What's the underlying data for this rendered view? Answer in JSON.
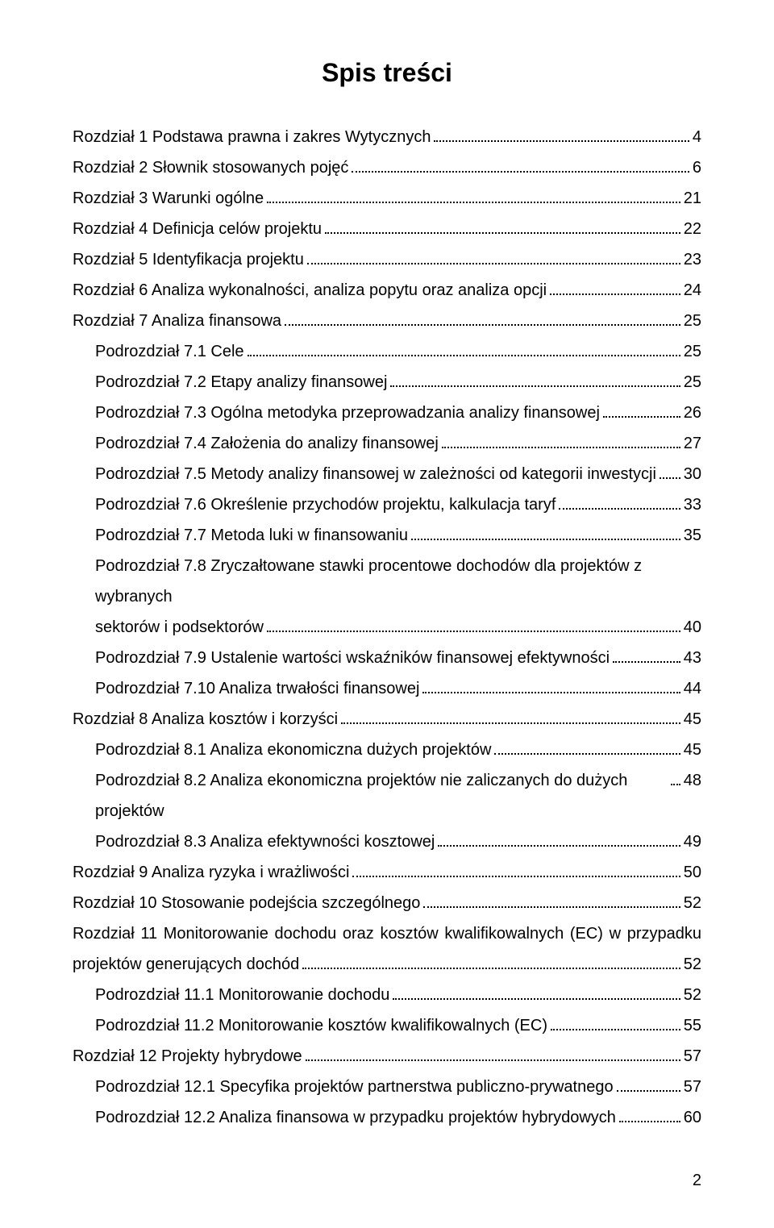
{
  "title": "Spis treści",
  "page_number": "2",
  "toc": [
    {
      "label": "Rozdział 1 Podstawa prawna i zakres Wytycznych",
      "page": "4",
      "indent": 0,
      "justify": false
    },
    {
      "label": "Rozdział 2 Słownik stosowanych pojęć",
      "page": "6",
      "indent": 0,
      "justify": false
    },
    {
      "label": "Rozdział 3 Warunki ogólne",
      "page": "21",
      "indent": 0,
      "justify": false
    },
    {
      "label": "Rozdział 4 Definicja celów projektu",
      "page": "22",
      "indent": 0,
      "justify": false
    },
    {
      "label": "Rozdział 5 Identyfikacja projektu",
      "page": "23",
      "indent": 0,
      "justify": false
    },
    {
      "label": "Rozdział 6 Analiza wykonalności, analiza popytu oraz analiza opcji",
      "page": "24",
      "indent": 0,
      "justify": false
    },
    {
      "label": "Rozdział 7 Analiza finansowa",
      "page": "25",
      "indent": 0,
      "justify": false
    },
    {
      "label": "Podrozdział 7.1 Cele",
      "page": "25",
      "indent": 1,
      "justify": false
    },
    {
      "label": "Podrozdział 7.2 Etapy analizy finansowej",
      "page": "25",
      "indent": 1,
      "justify": false
    },
    {
      "label": "Podrozdział 7.3 Ogólna metodyka przeprowadzania analizy finansowej",
      "page": "26",
      "indent": 1,
      "justify": false
    },
    {
      "label": "Podrozdział 7.4 Założenia do analizy finansowej",
      "page": "27",
      "indent": 1,
      "justify": false
    },
    {
      "label": "Podrozdział 7.5 Metody analizy finansowej  w zależności od kategorii inwestycji",
      "page": "30",
      "indent": 1,
      "justify": false
    },
    {
      "label": "Podrozdział 7.6 Określenie przychodów projektu, kalkulacja taryf",
      "page": "33",
      "indent": 1,
      "justify": false
    },
    {
      "label": "Podrozdział 7.7 Metoda luki w finansowaniu",
      "page": "35",
      "indent": 1,
      "justify": false
    },
    {
      "label_lines": [
        "Podrozdział 7.8 Zryczałtowane stawki procentowe dochodów dla projektów  z wybranych",
        "sektorów i podsektorów"
      ],
      "page": "40",
      "indent": 1,
      "multiline": true,
      "justify": false
    },
    {
      "label": "Podrozdział 7.9 Ustalenie wartości wskaźników finansowej efektywności",
      "page": "43",
      "indent": 1,
      "justify": false
    },
    {
      "label": "Podrozdział 7.10 Analiza trwałości finansowej",
      "page": "44",
      "indent": 1,
      "justify": false
    },
    {
      "label": "Rozdział 8 Analiza kosztów i korzyści",
      "page": "45",
      "indent": 0,
      "justify": false
    },
    {
      "label": "Podrozdział 8.1 Analiza ekonomiczna dużych projektów",
      "page": "45",
      "indent": 1,
      "justify": false
    },
    {
      "label": "Podrozdział 8.2 Analiza ekonomiczna projektów nie zaliczanych  do dużych projektów",
      "page": "48",
      "indent": 1,
      "justify": false
    },
    {
      "label": "Podrozdział 8.3 Analiza efektywności kosztowej",
      "page": "49",
      "indent": 1,
      "justify": false
    },
    {
      "label": "Rozdział 9 Analiza ryzyka i wrażliwości",
      "page": "50",
      "indent": 0,
      "justify": false
    },
    {
      "label": "Rozdział 10 Stosowanie podejścia szczególnego",
      "page": "52",
      "indent": 0,
      "justify": false
    },
    {
      "label_lines": [
        "Rozdział 11 Monitorowanie dochodu oraz kosztów kwalifikowalnych (EC) w przypadku",
        "projektów generujących dochód"
      ],
      "page": "52",
      "indent": 0,
      "multiline": true,
      "justify": true
    },
    {
      "label": "Podrozdział 11.1 Monitorowanie dochodu",
      "page": "52",
      "indent": 1,
      "justify": false
    },
    {
      "label": "Podrozdział 11.2 Monitorowanie kosztów kwalifikowalnych (EC)",
      "page": "55",
      "indent": 1,
      "justify": false
    },
    {
      "label": "Rozdział 12   Projekty hybrydowe",
      "page": "57",
      "indent": 0,
      "justify": false
    },
    {
      "label": "Podrozdział 12.1 Specyfika projektów partnerstwa publiczno-prywatnego",
      "page": "57",
      "indent": 1,
      "justify": false
    },
    {
      "label": "Podrozdział 12.2 Analiza finansowa w przypadku projektów hybrydowych",
      "page": "60",
      "indent": 1,
      "justify": false
    }
  ]
}
